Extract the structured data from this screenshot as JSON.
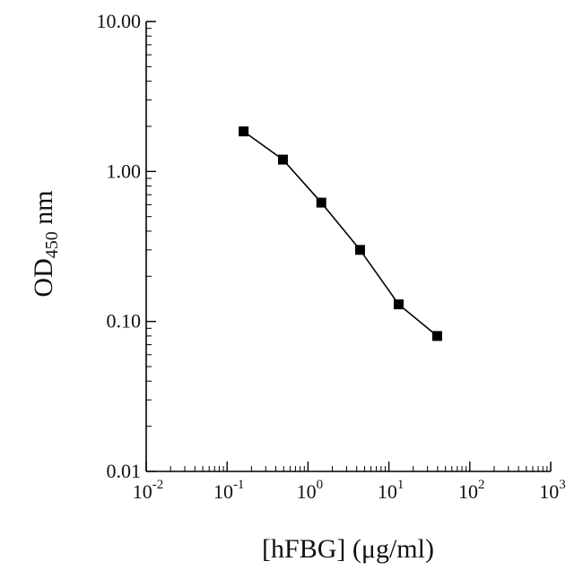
{
  "chart_data": {
    "type": "line",
    "xscale": "log",
    "yscale": "log",
    "xlim": [
      0.01,
      1000
    ],
    "ylim": [
      0.01,
      10
    ],
    "x_ticks": [
      {
        "base": "10",
        "exp": "-2",
        "value": 0.01
      },
      {
        "base": "10",
        "exp": "-1",
        "value": 0.1
      },
      {
        "base": "10",
        "exp": "0",
        "value": 1
      },
      {
        "base": "10",
        "exp": "1",
        "value": 10
      },
      {
        "base": "10",
        "exp": "2",
        "value": 100
      },
      {
        "base": "10",
        "exp": "3",
        "value": 1000
      }
    ],
    "y_ticks": [
      {
        "label": "10.00",
        "value": 10
      },
      {
        "label": "1.00",
        "value": 1
      },
      {
        "label": "0.10",
        "value": 0.1
      },
      {
        "label": "0.01",
        "value": 0.01
      }
    ],
    "xlabel": "[hFBG] (μg/ml)",
    "ylabel": {
      "main": "OD",
      "sub": "450",
      "unit": " nm"
    },
    "grid": false,
    "series": [
      {
        "x": [
          0.16,
          0.49,
          1.46,
          4.4,
          13.2,
          39.5
        ],
        "y": [
          1.85,
          1.2,
          0.62,
          0.3,
          0.13,
          0.08
        ],
        "marker": "square",
        "color": "#000000"
      }
    ]
  }
}
